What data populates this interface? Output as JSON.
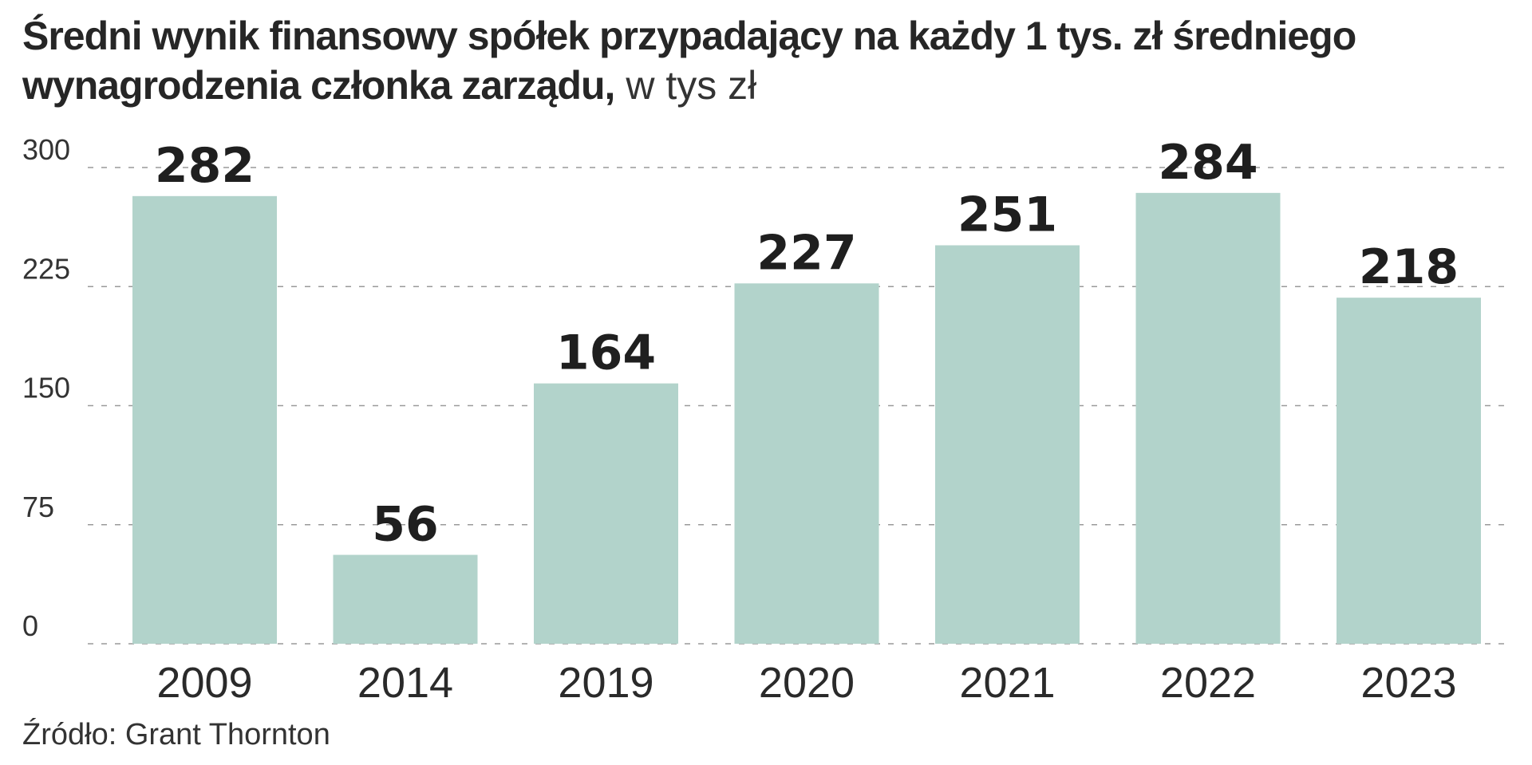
{
  "title": {
    "main": "Średni wynik finansowy spółek przypadający na każdy 1 tys. zł średniego wynagrodzenia członka zarządu,",
    "unit": " w tys zł"
  },
  "source": "Źródło: Grant Thornton",
  "colors": {
    "bar": "#b2d3cb",
    "grid": "#9a9a9a",
    "text": "#262626"
  },
  "chart_data": {
    "type": "bar",
    "categories": [
      "2009",
      "2014",
      "2019",
      "2020",
      "2021",
      "2022",
      "2023"
    ],
    "values": [
      282,
      56,
      164,
      227,
      251,
      284,
      218
    ],
    "data_labels": [
      "282",
      "56",
      "164",
      "227",
      "251",
      "284",
      "218"
    ],
    "yticks": [
      0,
      75,
      150,
      225,
      300
    ],
    "ytick_labels": [
      "0",
      "75",
      "150",
      "225",
      "300"
    ],
    "ylim": [
      0,
      300
    ],
    "grid": true,
    "grid_style": "dashed",
    "legend": "none",
    "xlabel": "",
    "ylabel": ""
  }
}
